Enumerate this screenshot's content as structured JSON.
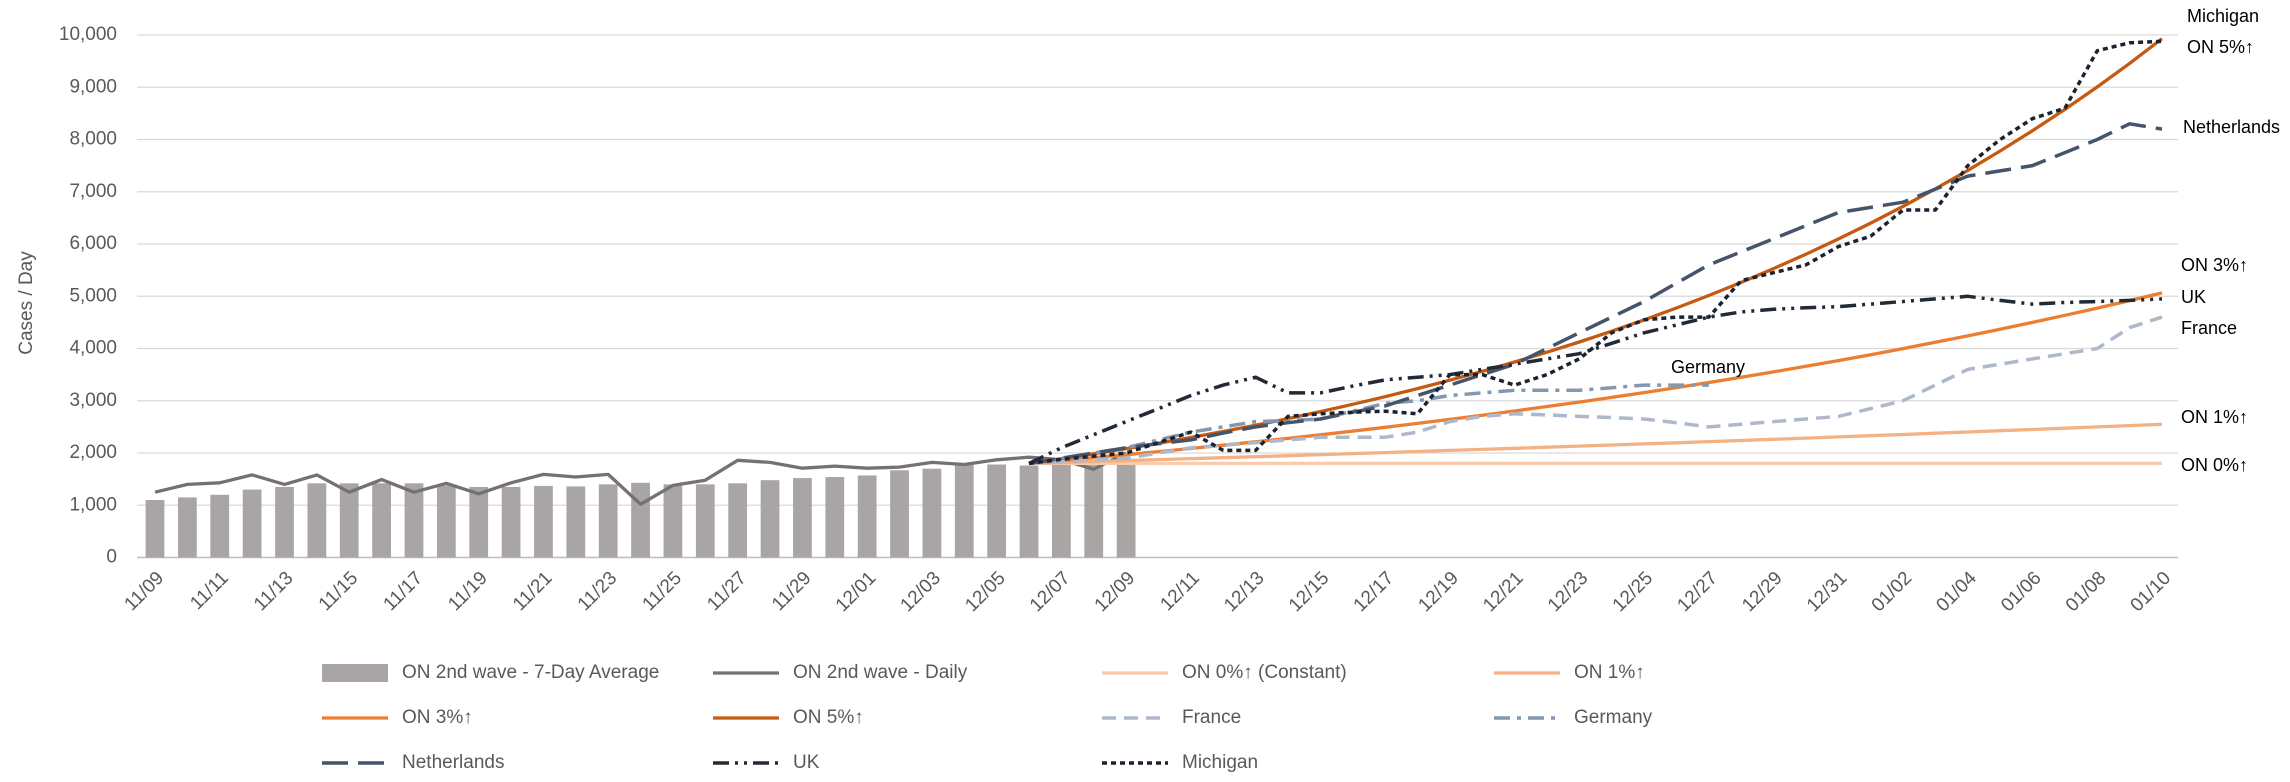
{
  "chart_data": {
    "type": "line",
    "y_label": "Cases / Day",
    "categories": [
      "11/09",
      null,
      "11/11",
      null,
      "11/13",
      null,
      "11/15",
      null,
      "11/17",
      null,
      "11/19",
      null,
      "11/21",
      null,
      "11/23",
      null,
      "11/25",
      null,
      "11/27",
      null,
      "11/29",
      null,
      "12/01",
      null,
      "12/03",
      null,
      "12/05",
      null,
      "12/07",
      null,
      "12/09",
      null,
      "12/11",
      null,
      "12/13",
      null,
      "12/15",
      null,
      "12/17",
      null,
      "12/19",
      null,
      "12/21",
      null,
      "12/23",
      null,
      "12/25",
      null,
      "12/27",
      null,
      "12/29",
      null,
      "12/31",
      null,
      "01/02",
      null,
      "01/04",
      null,
      "01/06",
      null,
      "01/08",
      null,
      "01/10"
    ],
    "ylim": [
      0,
      10000
    ],
    "yticks": [
      0,
      {
        "value": 1000,
        "label": "1,000"
      },
      {
        "value": 2000,
        "label": "2,000"
      },
      {
        "value": 3000,
        "label": "3,000"
      },
      {
        "value": 4000,
        "label": "4,000"
      },
      {
        "value": 5000,
        "label": "5,000"
      },
      {
        "value": 6000,
        "label": "6,000"
      },
      {
        "value": 7000,
        "label": "7,000"
      },
      {
        "value": 8000,
        "label": "8,000"
      },
      {
        "value": 9000,
        "label": "9,000"
      },
      {
        "value": 10000,
        "label": "10,000"
      }
    ],
    "grid": true,
    "legend": "bottom",
    "series": [
      {
        "name": "ON 2nd wave - 7-Day Average",
        "kind": "bar",
        "color": "#aaa5a5",
        "values": [
          1100,
          1150,
          1200,
          1300,
          1350,
          1420,
          1420,
          1420,
          1420,
          1380,
          1350,
          1350,
          1370,
          1360,
          1400,
          1430,
          1400,
          1400,
          1420,
          1480,
          1520,
          1540,
          1570,
          1670,
          1700,
          1780,
          1780,
          1760,
          1800,
          1780,
          1800,
          null,
          null,
          null,
          null,
          null,
          null,
          null,
          null,
          null,
          null,
          null,
          null,
          null,
          null,
          null,
          null,
          null,
          null,
          null,
          null,
          null,
          null,
          null,
          null,
          null,
          null,
          null,
          null,
          null,
          null,
          null,
          null
        ]
      },
      {
        "name": "ON 2nd wave - Daily",
        "kind": "line",
        "style": "solid",
        "color": "#767171",
        "values": [
          1250,
          1400,
          1430,
          1580,
          1400,
          1580,
          1250,
          1490,
          1250,
          1420,
          1220,
          1430,
          1590,
          1540,
          1590,
          1020,
          1380,
          1480,
          1860,
          1820,
          1710,
          1750,
          1710,
          1730,
          1820,
          1780,
          1870,
          1920,
          1870,
          1690,
          2000,
          null,
          null,
          null,
          null,
          null,
          null,
          null,
          null,
          null,
          null,
          null,
          null,
          null,
          null,
          null,
          null,
          null,
          null,
          null,
          null,
          null,
          null,
          null,
          null,
          null,
          null,
          null,
          null,
          null,
          null,
          null,
          null
        ]
      },
      {
        "name": "ON 0%↑ (Constant)",
        "kind": "line",
        "style": "solid",
        "color": "#f8cbad",
        "values": [
          null,
          null,
          null,
          null,
          null,
          null,
          null,
          null,
          null,
          null,
          null,
          null,
          null,
          null,
          null,
          null,
          null,
          null,
          null,
          null,
          null,
          null,
          null,
          null,
          null,
          null,
          null,
          1800,
          1800,
          1800,
          1800,
          1800,
          1800,
          1800,
          1800,
          1800,
          1800,
          1800,
          1800,
          1800,
          1800,
          1800,
          1800,
          1800,
          1800,
          1800,
          1800,
          1800,
          1800,
          1800,
          1800,
          1800,
          1800,
          1800,
          1800,
          1800,
          1800,
          1800,
          1800,
          1800,
          1800,
          1800,
          1800
        ]
      },
      {
        "name": "ON 1%↑",
        "kind": "line",
        "style": "solid",
        "color": "#f4b183",
        "values": [
          null,
          null,
          null,
          null,
          null,
          null,
          null,
          null,
          null,
          null,
          null,
          null,
          null,
          null,
          null,
          null,
          null,
          null,
          null,
          null,
          null,
          null,
          null,
          null,
          null,
          null,
          null,
          1800,
          1818,
          1836,
          1855,
          1873,
          1892,
          1911,
          1930,
          1949,
          1969,
          1988,
          2008,
          2028,
          2049,
          2069,
          2090,
          2111,
          2132,
          2153,
          2175,
          2196,
          2218,
          2240,
          2263,
          2286,
          2308,
          2331,
          2355,
          2378,
          2402,
          2426,
          2450,
          2475,
          2499,
          2524,
          2550
        ]
      },
      {
        "name": "ON 3%↑",
        "kind": "line",
        "style": "solid",
        "color": "#ed7d31",
        "values": [
          null,
          null,
          null,
          null,
          null,
          null,
          null,
          null,
          null,
          null,
          null,
          null,
          null,
          null,
          null,
          null,
          null,
          null,
          null,
          null,
          null,
          null,
          null,
          null,
          null,
          null,
          null,
          1800,
          1854,
          1910,
          1967,
          2026,
          2087,
          2149,
          2214,
          2280,
          2349,
          2419,
          2492,
          2566,
          2643,
          2723,
          2804,
          2889,
          2975,
          3064,
          3156,
          3251,
          3349,
          3449,
          3552,
          3659,
          3769,
          3882,
          3998,
          4118,
          4242,
          4369,
          4500,
          4635,
          4774,
          4917,
          5065
        ]
      },
      {
        "name": "ON 5%↑",
        "kind": "line",
        "style": "solid",
        "color": "#c55a11",
        "values": [
          null,
          null,
          null,
          null,
          null,
          null,
          null,
          null,
          null,
          null,
          null,
          null,
          null,
          null,
          null,
          null,
          null,
          null,
          null,
          null,
          null,
          null,
          null,
          null,
          null,
          null,
          null,
          1800,
          1890,
          1985,
          2084,
          2188,
          2297,
          2412,
          2533,
          2659,
          2792,
          2932,
          3078,
          3232,
          3394,
          3564,
          3742,
          3929,
          4125,
          4332,
          4548,
          4776,
          5014,
          5265,
          5529,
          5805,
          6095,
          6400,
          6720,
          7056,
          7409,
          7779,
          8168,
          8577,
          9006,
          9456,
          9929
        ]
      },
      {
        "name": "France",
        "kind": "line",
        "style": "dash",
        "color": "#adb9ca",
        "values": [
          null,
          null,
          null,
          null,
          null,
          null,
          null,
          null,
          null,
          null,
          null,
          null,
          null,
          null,
          null,
          null,
          null,
          null,
          null,
          null,
          null,
          null,
          null,
          null,
          null,
          null,
          null,
          1800,
          1830,
          1870,
          1900,
          2000,
          2100,
          2150,
          2200,
          2250,
          2300,
          2300,
          2300,
          2400,
          2600,
          2700,
          2750,
          2730,
          2700,
          2680,
          2650,
          2580,
          2500,
          2550,
          2600,
          2650,
          2700,
          2850,
          3000,
          3300,
          3600,
          3700,
          3800,
          3900,
          4000,
          4400,
          4600
        ]
      },
      {
        "name": "Germany",
        "kind": "line",
        "style": "dash-dot",
        "color": "#8497b0",
        "values": [
          null,
          null,
          null,
          null,
          null,
          null,
          null,
          null,
          null,
          null,
          null,
          null,
          null,
          null,
          null,
          null,
          null,
          null,
          null,
          null,
          null,
          null,
          null,
          null,
          null,
          null,
          null,
          1800,
          1900,
          2000,
          2100,
          2250,
          2400,
          2500,
          2600,
          2620,
          2650,
          2800,
          2950,
          3000,
          3100,
          3150,
          3200,
          3200,
          3200,
          3250,
          3300,
          3300,
          3300,
          null,
          null,
          null,
          null,
          null,
          null,
          null,
          null,
          null,
          null,
          null,
          null,
          null,
          null
        ]
      },
      {
        "name": "Netherlands",
        "kind": "line",
        "style": "long-dash",
        "color": "#44546a",
        "values": [
          null,
          null,
          null,
          null,
          null,
          null,
          null,
          null,
          null,
          null,
          null,
          null,
          null,
          null,
          null,
          null,
          null,
          null,
          null,
          null,
          null,
          null,
          null,
          null,
          null,
          null,
          null,
          1800,
          1900,
          2000,
          2100,
          2180,
          2250,
          2380,
          2500,
          2580,
          2650,
          2780,
          2900,
          3100,
          3300,
          3500,
          3700,
          4000,
          4300,
          4600,
          4900,
          5250,
          5600,
          5850,
          6100,
          6350,
          6600,
          6700,
          6800,
          7050,
          7300,
          7400,
          7500,
          7750,
          8000,
          8300,
          8200
        ]
      },
      {
        "name": "UK",
        "kind": "line",
        "style": "dash-dot-dot",
        "color": "#222a35",
        "values": [
          null,
          null,
          null,
          null,
          null,
          null,
          null,
          null,
          null,
          null,
          null,
          null,
          null,
          null,
          null,
          null,
          null,
          null,
          null,
          null,
          null,
          null,
          null,
          null,
          null,
          null,
          null,
          1800,
          2100,
          2350,
          2600,
          2850,
          3100,
          3300,
          3450,
          3150,
          3150,
          3280,
          3400,
          3450,
          3500,
          3600,
          3700,
          3800,
          3900,
          4100,
          4300,
          4450,
          4600,
          4700,
          4750,
          4780,
          4800,
          4850,
          4900,
          4950,
          5000,
          4920,
          4850,
          4880,
          4900,
          4920,
          4950
        ]
      },
      {
        "name": "Michigan",
        "kind": "line",
        "style": "dot",
        "color": "#1b2330",
        "values": [
          null,
          null,
          null,
          null,
          null,
          null,
          null,
          null,
          null,
          null,
          null,
          null,
          null,
          null,
          null,
          null,
          null,
          null,
          null,
          null,
          null,
          null,
          null,
          null,
          null,
          null,
          null,
          1800,
          1880,
          1940,
          2000,
          2200,
          2400,
          2050,
          2050,
          2700,
          2750,
          2780,
          2800,
          2750,
          3500,
          3500,
          3300,
          3500,
          3800,
          4300,
          4550,
          4600,
          4600,
          5300,
          5450,
          5600,
          5950,
          6150,
          6650,
          6650,
          7500,
          8000,
          8400,
          8600,
          9700,
          9850,
          9880
        ]
      }
    ],
    "annotations": [
      "Michigan",
      "ON 5%↑",
      "Netherlands",
      "ON 3%↑",
      "UK",
      "France",
      "Germany",
      "ON 1%↑",
      "ON 0%↑"
    ]
  }
}
